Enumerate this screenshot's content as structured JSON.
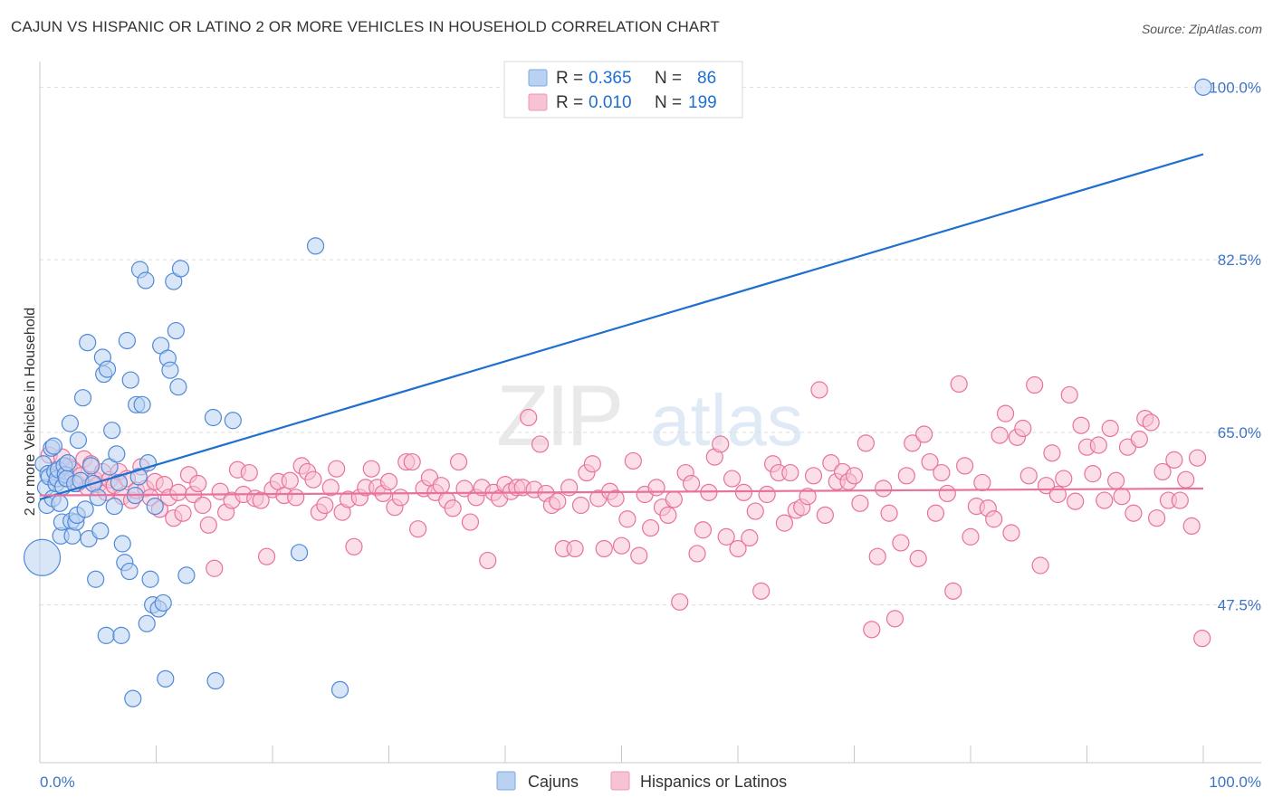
{
  "title": "CAJUN VS HISPANIC OR LATINO 2 OR MORE VEHICLES IN HOUSEHOLD CORRELATION CHART",
  "source": "Source: ZipAtlas.com",
  "watermark": {
    "zip": "ZIP",
    "atlas": "atlas"
  },
  "colors": {
    "blue": "#1f6fcf",
    "blue_fill": "#b9d2f2",
    "pink": "#e8729c",
    "pink_fill": "#f7c3d4",
    "axis_label": "#3d74c4",
    "grid": "#dddddd"
  },
  "legend": {
    "rows": [
      {
        "r_label": "R = ",
        "r_value": "0.365",
        "n_label": "N = ",
        "n_value": "86"
      },
      {
        "r_label": "R = ",
        "r_value": "0.010",
        "n_label": "N = ",
        "n_value": "199"
      }
    ]
  },
  "chart_data": {
    "type": "scatter",
    "title": "CAJUN VS HISPANIC OR LATINO 2 OR MORE VEHICLES IN HOUSEHOLD CORRELATION CHART",
    "xlabel": "",
    "ylabel": "2 or more Vehicles in Household",
    "xlim": [
      0,
      100
    ],
    "ylim": [
      31.5,
      101.5
    ],
    "x_tick_labels": [
      "0.0%",
      "100.0%"
    ],
    "y_ticks": [
      {
        "value": 47.5,
        "label": "47.5%"
      },
      {
        "value": 65.0,
        "label": "65.0%"
      },
      {
        "value": 82.5,
        "label": "82.5%"
      },
      {
        "value": 100.0,
        "label": "100.0%"
      }
    ],
    "grid": "horizontal dashed",
    "legend_position": "bottom-center",
    "series": [
      {
        "name": "Cajuns",
        "R": 0.365,
        "N": 86,
        "trend": {
          "x": [
            0,
            100
          ],
          "y": [
            58.2,
            93.2
          ]
        },
        "points": [
          [
            0.2,
            52.3
          ],
          [
            0.3,
            61.8
          ],
          [
            0.5,
            59.4
          ],
          [
            0.6,
            57.6
          ],
          [
            0.7,
            60.8
          ],
          [
            0.8,
            60.5
          ],
          [
            1.0,
            63.4
          ],
          [
            1.1,
            58.3
          ],
          [
            1.2,
            63.6
          ],
          [
            1.3,
            61.0
          ],
          [
            1.4,
            59.8
          ],
          [
            1.5,
            60.3
          ],
          [
            1.6,
            61.2
          ],
          [
            1.7,
            57.8
          ],
          [
            1.8,
            54.5
          ],
          [
            1.9,
            55.9
          ],
          [
            2.0,
            59.5
          ],
          [
            2.1,
            61.6
          ],
          [
            2.2,
            60.7
          ],
          [
            2.3,
            60.3
          ],
          [
            2.4,
            61.9
          ],
          [
            2.6,
            65.9
          ],
          [
            2.7,
            56.0
          ],
          [
            2.8,
            54.5
          ],
          [
            3.0,
            59.8
          ],
          [
            3.1,
            55.9
          ],
          [
            3.2,
            56.6
          ],
          [
            3.3,
            64.2
          ],
          [
            3.5,
            60.1
          ],
          [
            3.7,
            68.5
          ],
          [
            3.9,
            57.2
          ],
          [
            4.1,
            74.1
          ],
          [
            4.2,
            54.2
          ],
          [
            4.4,
            61.6
          ],
          [
            4.6,
            59.8
          ],
          [
            4.8,
            50.1
          ],
          [
            5.0,
            58.4
          ],
          [
            5.2,
            55.0
          ],
          [
            5.4,
            72.6
          ],
          [
            5.5,
            70.9
          ],
          [
            5.7,
            44.4
          ],
          [
            5.8,
            71.4
          ],
          [
            6.0,
            61.5
          ],
          [
            6.2,
            65.2
          ],
          [
            6.4,
            57.5
          ],
          [
            6.6,
            62.8
          ],
          [
            6.8,
            59.9
          ],
          [
            7.0,
            44.4
          ],
          [
            7.1,
            53.7
          ],
          [
            7.3,
            51.8
          ],
          [
            7.5,
            74.3
          ],
          [
            7.7,
            50.9
          ],
          [
            7.8,
            70.3
          ],
          [
            8.0,
            38.0
          ],
          [
            8.2,
            58.6
          ],
          [
            8.3,
            67.8
          ],
          [
            8.5,
            60.5
          ],
          [
            8.6,
            81.5
          ],
          [
            8.8,
            67.8
          ],
          [
            9.1,
            80.4
          ],
          [
            9.2,
            45.6
          ],
          [
            9.3,
            61.9
          ],
          [
            9.5,
            50.1
          ],
          [
            9.7,
            47.5
          ],
          [
            9.9,
            57.5
          ],
          [
            10.2,
            47.1
          ],
          [
            10.4,
            73.8
          ],
          [
            10.6,
            47.7
          ],
          [
            10.8,
            40.0
          ],
          [
            11.0,
            72.5
          ],
          [
            11.2,
            71.3
          ],
          [
            11.5,
            80.3
          ],
          [
            11.7,
            75.3
          ],
          [
            11.9,
            69.6
          ],
          [
            12.1,
            81.6
          ],
          [
            12.6,
            50.5
          ],
          [
            14.9,
            66.5
          ],
          [
            15.1,
            39.8
          ],
          [
            16.6,
            66.2
          ],
          [
            22.3,
            52.8
          ],
          [
            23.7,
            83.9
          ],
          [
            25.8,
            38.9
          ],
          [
            100.0,
            100.0
          ]
        ]
      },
      {
        "name": "Hispanics or Latinos",
        "R": 0.01,
        "N": 199,
        "trend": {
          "x": [
            0,
            100
          ],
          "y": [
            58.6,
            59.3
          ]
        },
        "points": [
          [
            0.8,
            62.7
          ],
          [
            1.5,
            60.8
          ],
          [
            1.9,
            62.5
          ],
          [
            2.2,
            60.4
          ],
          [
            2.5,
            61.5
          ],
          [
            2.9,
            61.2
          ],
          [
            3.2,
            59.8
          ],
          [
            3.5,
            60.6
          ],
          [
            3.8,
            62.3
          ],
          [
            4.1,
            59.4
          ],
          [
            4.4,
            61.8
          ],
          [
            4.7,
            60.2
          ],
          [
            5.0,
            59.7
          ],
          [
            5.4,
            61.0
          ],
          [
            5.7,
            58.9
          ],
          [
            6.0,
            60.2
          ],
          [
            6.4,
            59.6
          ],
          [
            6.8,
            61.0
          ],
          [
            7.1,
            58.5
          ],
          [
            7.5,
            60.3
          ],
          [
            7.9,
            58.1
          ],
          [
            8.3,
            59.1
          ],
          [
            8.7,
            61.5
          ],
          [
            9.1,
            59.3
          ],
          [
            9.5,
            58.4
          ],
          [
            9.9,
            60.0
          ],
          [
            10.3,
            57.2
          ],
          [
            10.7,
            59.7
          ],
          [
            11.1,
            58.4
          ],
          [
            11.5,
            56.3
          ],
          [
            11.9,
            58.9
          ],
          [
            12.3,
            56.8
          ],
          [
            12.8,
            60.7
          ],
          [
            13.2,
            58.7
          ],
          [
            13.6,
            59.8
          ],
          [
            14.0,
            57.6
          ],
          [
            14.5,
            55.6
          ],
          [
            15.0,
            51.2
          ],
          [
            15.5,
            59.0
          ],
          [
            16.0,
            56.9
          ],
          [
            16.5,
            58.1
          ],
          [
            17.0,
            61.2
          ],
          [
            17.5,
            58.7
          ],
          [
            18.0,
            60.9
          ],
          [
            18.5,
            58.3
          ],
          [
            19.0,
            58.1
          ],
          [
            19.5,
            52.4
          ],
          [
            20.0,
            59.2
          ],
          [
            20.5,
            60.0
          ],
          [
            21.0,
            58.6
          ],
          [
            21.5,
            60.1
          ],
          [
            22.0,
            58.4
          ],
          [
            22.5,
            61.6
          ],
          [
            23.0,
            61.0
          ],
          [
            23.5,
            60.2
          ],
          [
            24.0,
            56.9
          ],
          [
            24.5,
            57.6
          ],
          [
            25.0,
            59.4
          ],
          [
            25.5,
            61.3
          ],
          [
            26.0,
            56.9
          ],
          [
            26.5,
            58.2
          ],
          [
            27.0,
            53.4
          ],
          [
            27.5,
            58.4
          ],
          [
            28.0,
            59.4
          ],
          [
            28.5,
            61.3
          ],
          [
            29.0,
            59.4
          ],
          [
            29.5,
            58.8
          ],
          [
            30.0,
            60.0
          ],
          [
            30.5,
            57.4
          ],
          [
            31.0,
            58.4
          ],
          [
            31.5,
            62.0
          ],
          [
            32.0,
            62.0
          ],
          [
            32.5,
            55.2
          ],
          [
            33.0,
            59.3
          ],
          [
            33.5,
            60.4
          ],
          [
            34.0,
            58.9
          ],
          [
            34.5,
            59.6
          ],
          [
            35.0,
            58.1
          ],
          [
            35.5,
            57.3
          ],
          [
            36.0,
            62.0
          ],
          [
            36.5,
            59.3
          ],
          [
            37.0,
            55.9
          ],
          [
            37.5,
            58.4
          ],
          [
            38.0,
            59.4
          ],
          [
            38.5,
            52.0
          ],
          [
            39.0,
            58.9
          ],
          [
            39.5,
            58.3
          ],
          [
            40.0,
            59.7
          ],
          [
            40.5,
            59.0
          ],
          [
            41.0,
            59.4
          ],
          [
            41.5,
            59.4
          ],
          [
            42.0,
            66.5
          ],
          [
            42.5,
            59.2
          ],
          [
            43.0,
            63.8
          ],
          [
            43.5,
            58.8
          ],
          [
            44.0,
            57.6
          ],
          [
            44.5,
            58.0
          ],
          [
            45.0,
            53.2
          ],
          [
            45.5,
            59.4
          ],
          [
            46.0,
            53.2
          ],
          [
            46.5,
            57.6
          ],
          [
            47.0,
            60.9
          ],
          [
            47.5,
            61.8
          ],
          [
            48.0,
            58.3
          ],
          [
            48.5,
            53.2
          ],
          [
            49.0,
            59.0
          ],
          [
            49.5,
            58.3
          ],
          [
            50.0,
            53.5
          ],
          [
            50.5,
            56.2
          ],
          [
            51.0,
            62.1
          ],
          [
            51.5,
            52.5
          ],
          [
            52.0,
            58.7
          ],
          [
            52.5,
            55.3
          ],
          [
            53.0,
            59.4
          ],
          [
            53.5,
            57.4
          ],
          [
            54.0,
            56.6
          ],
          [
            54.5,
            58.2
          ],
          [
            55.0,
            47.8
          ],
          [
            55.5,
            60.9
          ],
          [
            56.0,
            59.8
          ],
          [
            56.5,
            52.7
          ],
          [
            57.0,
            55.1
          ],
          [
            57.5,
            58.9
          ],
          [
            58.0,
            62.5
          ],
          [
            58.5,
            63.8
          ],
          [
            59.0,
            54.4
          ],
          [
            59.5,
            60.3
          ],
          [
            60.0,
            53.2
          ],
          [
            60.5,
            58.9
          ],
          [
            61.0,
            54.3
          ],
          [
            61.5,
            57.0
          ],
          [
            62.0,
            48.9
          ],
          [
            62.5,
            58.7
          ],
          [
            63.0,
            61.8
          ],
          [
            63.5,
            60.9
          ],
          [
            64.0,
            55.8
          ],
          [
            64.5,
            60.9
          ],
          [
            65.0,
            57.1
          ],
          [
            65.5,
            57.4
          ],
          [
            66.0,
            58.5
          ],
          [
            66.5,
            60.6
          ],
          [
            67.0,
            69.3
          ],
          [
            67.5,
            56.6
          ],
          [
            68.0,
            61.9
          ],
          [
            68.5,
            60.0
          ],
          [
            69.0,
            61.0
          ],
          [
            69.5,
            60.0
          ],
          [
            70.0,
            60.6
          ],
          [
            70.5,
            57.8
          ],
          [
            71.0,
            63.9
          ],
          [
            71.5,
            45.0
          ],
          [
            72.0,
            52.4
          ],
          [
            72.5,
            59.3
          ],
          [
            73.0,
            56.8
          ],
          [
            73.5,
            46.1
          ],
          [
            74.0,
            53.8
          ],
          [
            74.5,
            60.6
          ],
          [
            75.0,
            63.9
          ],
          [
            75.5,
            52.2
          ],
          [
            76.0,
            64.8
          ],
          [
            76.5,
            62.0
          ],
          [
            77.0,
            56.8
          ],
          [
            77.5,
            60.9
          ],
          [
            78.0,
            58.8
          ],
          [
            78.5,
            48.9
          ],
          [
            79.0,
            69.9
          ],
          [
            79.5,
            61.6
          ],
          [
            80.0,
            54.4
          ],
          [
            80.5,
            57.5
          ],
          [
            81.0,
            59.9
          ],
          [
            81.5,
            57.3
          ],
          [
            82.0,
            56.2
          ],
          [
            82.5,
            64.7
          ],
          [
            83.0,
            66.9
          ],
          [
            83.5,
            54.8
          ],
          [
            84.0,
            64.5
          ],
          [
            84.5,
            65.4
          ],
          [
            85.0,
            60.6
          ],
          [
            85.5,
            69.8
          ],
          [
            86.0,
            51.5
          ],
          [
            86.5,
            59.6
          ],
          [
            87.0,
            62.9
          ],
          [
            87.5,
            58.7
          ],
          [
            88.0,
            60.3
          ],
          [
            88.5,
            68.8
          ],
          [
            89.0,
            58.0
          ],
          [
            89.5,
            65.7
          ],
          [
            90.0,
            63.5
          ],
          [
            90.5,
            60.8
          ],
          [
            91.0,
            63.7
          ],
          [
            91.5,
            58.1
          ],
          [
            92.0,
            65.4
          ],
          [
            92.5,
            60.1
          ],
          [
            93.0,
            58.5
          ],
          [
            93.5,
            63.5
          ],
          [
            94.0,
            56.8
          ],
          [
            94.5,
            64.3
          ],
          [
            95.0,
            66.4
          ],
          [
            95.5,
            66.0
          ],
          [
            96.0,
            56.3
          ],
          [
            96.5,
            61.0
          ],
          [
            97.0,
            58.1
          ],
          [
            97.5,
            62.2
          ],
          [
            98.0,
            58.1
          ],
          [
            98.5,
            60.2
          ],
          [
            99.0,
            55.5
          ],
          [
            99.5,
            62.4
          ],
          [
            99.9,
            44.1
          ]
        ]
      }
    ]
  }
}
